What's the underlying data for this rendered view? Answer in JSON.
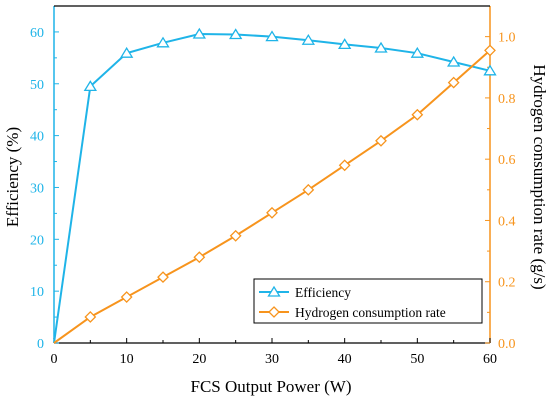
{
  "chart_data": {
    "type": "line",
    "xlabel": "FCS Output Power (W)",
    "ylabel_left": "Efficiency (%)",
    "ylabel_right": "Hydrogen consumption rate (g/s)",
    "xlim": [
      0,
      60
    ],
    "ylim_left": [
      0,
      65
    ],
    "ylim_right": [
      0,
      1.1
    ],
    "x_ticks": [
      0,
      10,
      20,
      30,
      40,
      50,
      60
    ],
    "y_left_ticks": [
      0,
      10,
      20,
      30,
      40,
      50,
      60
    ],
    "y_right_ticks": [
      0.0,
      0.2,
      0.4,
      0.6,
      0.8,
      1.0
    ],
    "y_right_tick_labels": [
      "0.0",
      "0.2",
      "0.4",
      "0.6",
      "0.8",
      "1.0"
    ],
    "legend_position": "bottom-right",
    "series": [
      {
        "name": "Efficiency",
        "axis": "left",
        "color": "#1fb4e8",
        "marker": "triangle",
        "x": [
          0,
          5,
          10,
          15,
          20,
          25,
          30,
          35,
          40,
          45,
          50,
          55,
          60
        ],
        "y": [
          0,
          49.5,
          55.9,
          57.9,
          59.6,
          59.5,
          59.1,
          58.4,
          57.6,
          56.9,
          55.9,
          54.2,
          52.5
        ]
      },
      {
        "name": "Hydrogen consumption rate",
        "axis": "right",
        "color": "#f7941d",
        "marker": "diamond",
        "x": [
          0,
          5,
          10,
          15,
          20,
          25,
          30,
          35,
          40,
          45,
          50,
          55,
          60
        ],
        "y": [
          0,
          0.085,
          0.15,
          0.215,
          0.28,
          0.35,
          0.425,
          0.5,
          0.58,
          0.66,
          0.745,
          0.85,
          0.955
        ]
      }
    ]
  }
}
